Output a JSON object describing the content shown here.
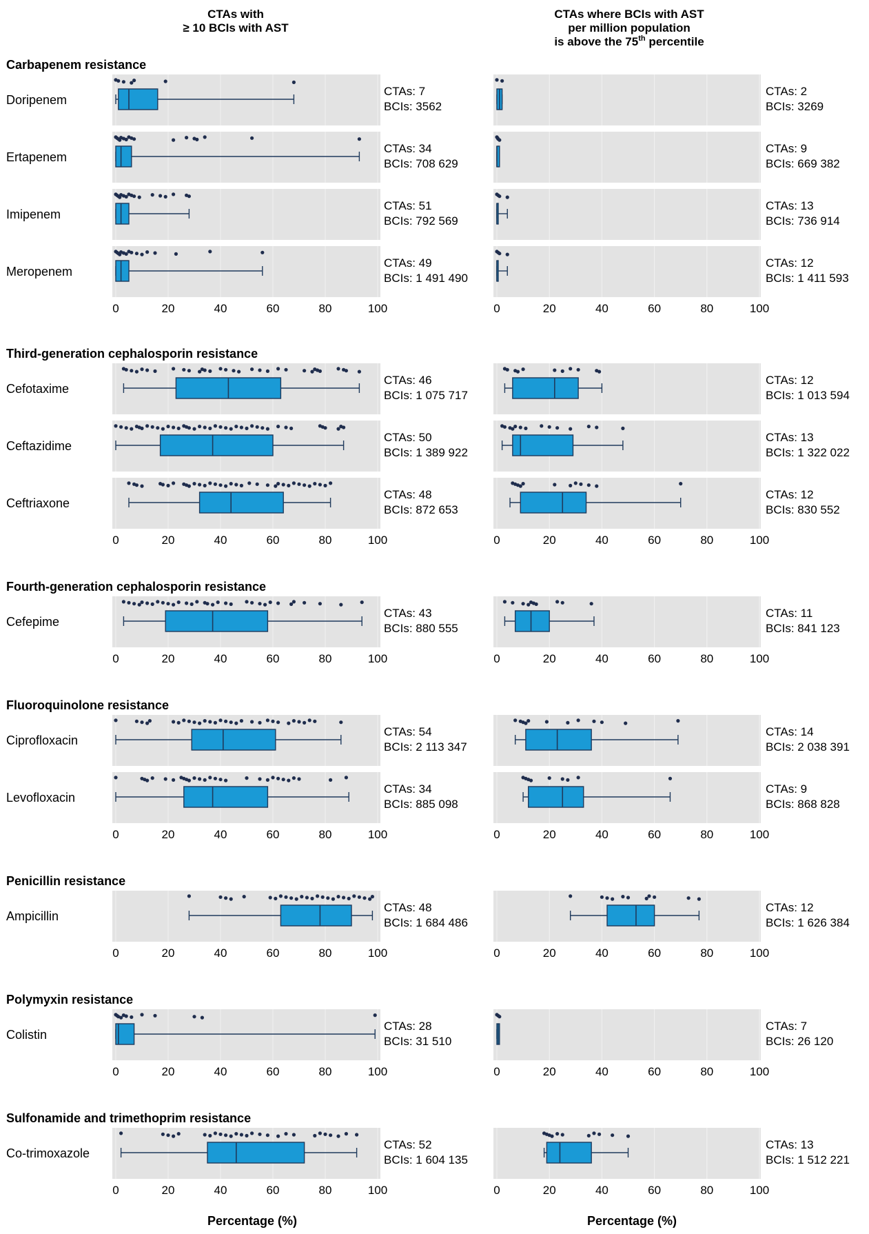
{
  "colors": {
    "panel_bg": "#e3e3e3",
    "grid": "#f2f2f2",
    "box_fill": "#1a9ad6",
    "box_stroke": "#1f3a5c",
    "point": "#1f2d4d"
  },
  "chart_data": {
    "type": "boxplot",
    "value_label": "Percentage (%)",
    "xlim": [
      0,
      100
    ],
    "x_ticks": [
      "0",
      "20",
      "40",
      "60",
      "80",
      "100"
    ],
    "grid": true,
    "columns": [
      {
        "lines": [
          "CTAs with",
          "≥ 10 BCIs with AST"
        ]
      },
      {
        "lines": [
          "CTAs where BCIs with AST",
          "per million population",
          "is above the 75",
          "percentile"
        ],
        "superscript": "th"
      }
    ],
    "x_labels": [
      "Percentage (%)",
      "Percentage (%)"
    ],
    "groups": [
      {
        "title": "Carbapenem resistance",
        "rows": [
          {
            "drug": "Doripenem",
            "left": {
              "min": 0,
              "q1": 1,
              "median": 5,
              "q3": 16,
              "max": 68,
              "points": [
                0,
                1,
                3,
                6,
                7,
                19,
                68
              ],
              "ctas": "CTAs: 7",
              "bcis": "BCIs: 3562"
            },
            "right": {
              "min": 0,
              "q1": 0,
              "median": 1,
              "q3": 2,
              "max": 2,
              "points": [
                0,
                2
              ],
              "ctas": "CTAs: 2",
              "bcis": "BCIs: 3269"
            }
          },
          {
            "drug": "Ertapenem",
            "left": {
              "min": 0,
              "q1": 0,
              "median": 2,
              "q3": 6,
              "max": 93,
              "points": [
                0,
                0.5,
                1,
                1.5,
                2,
                3,
                4,
                5,
                6,
                7,
                22,
                27,
                30,
                31,
                34,
                52,
                93
              ],
              "ctas": "CTAs: 34",
              "bcis": "BCIs: 708 629"
            },
            "right": {
              "min": 0,
              "q1": 0,
              "median": 0,
              "q3": 1,
              "max": 1,
              "points": [
                0,
                0.3,
                0.5,
                1
              ],
              "ctas": "CTAs: 9",
              "bcis": "BCIs: 669 382"
            }
          },
          {
            "drug": "Imipenem",
            "left": {
              "min": 0,
              "q1": 0,
              "median": 2,
              "q3": 5,
              "max": 28,
              "points": [
                0,
                0.5,
                1,
                1.5,
                2,
                3,
                4,
                5,
                6,
                7,
                9,
                14,
                17,
                19,
                22,
                27,
                28
              ],
              "ctas": "CTAs: 51",
              "bcis": "BCIs: 792 569"
            },
            "right": {
              "min": 0,
              "q1": 0,
              "median": 0,
              "q3": 0.5,
              "max": 4,
              "points": [
                0,
                0.5,
                1,
                4
              ],
              "ctas": "CTAs: 13",
              "bcis": "BCIs: 736 914"
            }
          },
          {
            "drug": "Meropenem",
            "left": {
              "min": 0,
              "q1": 0,
              "median": 2,
              "q3": 5,
              "max": 56,
              "points": [
                0,
                0.5,
                1,
                1.5,
                2,
                3,
                4,
                5,
                6,
                8,
                10,
                12,
                15,
                23,
                36,
                56
              ],
              "ctas": "CTAs: 49",
              "bcis": "BCIs: 1 491 490"
            },
            "right": {
              "min": 0,
              "q1": 0,
              "median": 0,
              "q3": 0.5,
              "max": 4,
              "points": [
                0,
                0.5,
                1,
                4
              ],
              "ctas": "CTAs: 12",
              "bcis": "BCIs: 1 411 593"
            }
          }
        ]
      },
      {
        "title": "Third-generation cephalosporin resistance",
        "rows": [
          {
            "drug": "Cefotaxime",
            "left": {
              "min": 3,
              "q1": 23,
              "median": 43,
              "q3": 63,
              "max": 93,
              "points": [
                3,
                4,
                6,
                8,
                10,
                12,
                15,
                22,
                26,
                28,
                32,
                33,
                34,
                36,
                40,
                42,
                45,
                47,
                52,
                55,
                58,
                62,
                65,
                72,
                75,
                76,
                77,
                78,
                85,
                87,
                88,
                93
              ],
              "ctas": "CTAs: 46",
              "bcis": "BCIs: 1 075 717"
            },
            "right": {
              "min": 3,
              "q1": 6,
              "median": 22,
              "q3": 31,
              "max": 40,
              "points": [
                3,
                4,
                7,
                8,
                10,
                22,
                25,
                28,
                31,
                38,
                39
              ],
              "ctas": "CTAs: 12",
              "bcis": "BCIs: 1 013 594"
            }
          },
          {
            "drug": "Ceftazidime",
            "left": {
              "min": 0,
              "q1": 17,
              "median": 37,
              "q3": 60,
              "max": 87,
              "points": [
                0,
                2,
                4,
                6,
                8,
                9,
                10,
                12,
                14,
                16,
                18,
                20,
                22,
                24,
                26,
                27,
                28,
                30,
                32,
                34,
                36,
                38,
                40,
                42,
                44,
                46,
                48,
                50,
                52,
                54,
                56,
                58,
                62,
                65,
                67,
                78,
                79,
                80,
                85,
                86,
                87
              ],
              "ctas": "CTAs: 50",
              "bcis": "BCIs: 1 389 922"
            },
            "right": {
              "min": 2,
              "q1": 6,
              "median": 9,
              "q3": 29,
              "max": 48,
              "points": [
                2,
                3,
                5,
                6,
                7,
                9,
                11,
                17,
                20,
                23,
                28,
                35,
                38,
                48
              ],
              "ctas": "CTAs: 13",
              "bcis": "BCIs: 1 322 022"
            }
          },
          {
            "drug": "Ceftriaxone",
            "left": {
              "min": 5,
              "q1": 32,
              "median": 44,
              "q3": 64,
              "max": 82,
              "points": [
                5,
                7,
                8,
                10,
                17,
                18,
                20,
                22,
                26,
                27,
                28,
                30,
                32,
                34,
                36,
                38,
                40,
                42,
                44,
                46,
                48,
                51,
                54,
                58,
                61,
                62,
                64,
                66,
                68,
                70,
                72,
                74,
                76,
                78,
                80,
                82
              ],
              "ctas": "CTAs: 48",
              "bcis": "BCIs: 872 653"
            },
            "right": {
              "min": 5,
              "q1": 9,
              "median": 25,
              "q3": 34,
              "max": 70,
              "points": [
                6,
                7,
                8,
                9,
                10,
                22,
                28,
                30,
                32,
                35,
                38,
                70
              ],
              "ctas": "CTAs: 12",
              "bcis": "BCIs: 830 552"
            }
          }
        ]
      },
      {
        "title": "Fourth-generation cephalosporin resistance",
        "rows": [
          {
            "drug": "Cefepime",
            "left": {
              "min": 3,
              "q1": 19,
              "median": 37,
              "q3": 58,
              "max": 94,
              "points": [
                3,
                5,
                7,
                9,
                10,
                12,
                14,
                16,
                18,
                20,
                22,
                24,
                27,
                29,
                31,
                34,
                35,
                37,
                39,
                42,
                44,
                50,
                52,
                55,
                57,
                59,
                62,
                67,
                68,
                72,
                78,
                86,
                94
              ],
              "ctas": "CTAs: 43",
              "bcis": "BCIs: 880 555"
            },
            "right": {
              "min": 3,
              "q1": 7,
              "median": 13,
              "q3": 20,
              "max": 37,
              "points": [
                3,
                6,
                10,
                12,
                13,
                14,
                15,
                23,
                25,
                36
              ],
              "ctas": "CTAs: 11",
              "bcis": "BCIs: 841 123"
            }
          }
        ]
      },
      {
        "title": "Fluoroquinolone resistance",
        "rows": [
          {
            "drug": "Ciprofloxacin",
            "left": {
              "min": 0,
              "q1": 29,
              "median": 41,
              "q3": 61,
              "max": 86,
              "points": [
                0,
                8,
                10,
                12,
                13,
                22,
                24,
                26,
                28,
                30,
                32,
                34,
                36,
                38,
                40,
                42,
                44,
                46,
                48,
                52,
                55,
                58,
                60,
                62,
                66,
                68,
                70,
                72,
                74,
                76,
                86
              ],
              "ctas": "CTAs: 54",
              "bcis": "BCIs: 2 113 347"
            },
            "right": {
              "min": 7,
              "q1": 11,
              "median": 23,
              "q3": 36,
              "max": 69,
              "points": [
                7,
                9,
                10,
                11,
                12,
                19,
                27,
                31,
                37,
                40,
                49,
                69
              ],
              "ctas": "CTAs: 14",
              "bcis": "BCIs: 2 038 391"
            }
          },
          {
            "drug": "Levofloxacin",
            "left": {
              "min": 0,
              "q1": 26,
              "median": 37,
              "q3": 58,
              "max": 89,
              "points": [
                0,
                10,
                11,
                12,
                14,
                19,
                22,
                25,
                26,
                27,
                28,
                30,
                32,
                34,
                36,
                38,
                40,
                42,
                50,
                55,
                58,
                60,
                62,
                64,
                66,
                68,
                70,
                82,
                88
              ],
              "ctas": "CTAs: 34",
              "bcis": "BCIs: 885 098"
            },
            "right": {
              "min": 10,
              "q1": 12,
              "median": 25,
              "q3": 33,
              "max": 66,
              "points": [
                10,
                11,
                12,
                13,
                20,
                25,
                27,
                31,
                66
              ],
              "ctas": "CTAs: 9",
              "bcis": "BCIs: 868 828"
            }
          }
        ]
      },
      {
        "title": "Penicillin resistance",
        "rows": [
          {
            "drug": "Ampicillin",
            "left": {
              "min": 28,
              "q1": 63,
              "median": 78,
              "q3": 90,
              "max": 98,
              "points": [
                28,
                40,
                42,
                44,
                49,
                59,
                61,
                63,
                65,
                67,
                69,
                71,
                73,
                75,
                77,
                79,
                81,
                83,
                85,
                87,
                89,
                91,
                93,
                95,
                97,
                98
              ],
              "ctas": "CTAs: 48",
              "bcis": "BCIs: 1 684 486"
            },
            "right": {
              "min": 28,
              "q1": 42,
              "median": 53,
              "q3": 60,
              "max": 77,
              "points": [
                28,
                40,
                42,
                44,
                48,
                50,
                57,
                58,
                60,
                73,
                77
              ],
              "ctas": "CTAs: 12",
              "bcis": "BCIs: 1 626 384"
            }
          }
        ]
      },
      {
        "title": "Polymyxin resistance",
        "rows": [
          {
            "drug": "Colistin",
            "left": {
              "min": 0,
              "q1": 0,
              "median": 1,
              "q3": 7,
              "max": 99,
              "points": [
                0,
                0.5,
                1,
                2,
                3,
                4,
                6,
                10,
                15,
                30,
                33,
                99
              ],
              "ctas": "CTAs: 28",
              "bcis": "BCIs: 31 510"
            },
            "right": {
              "min": 0,
              "q1": 0,
              "median": 0.5,
              "q3": 1,
              "max": 1,
              "points": [
                0,
                0.5,
                1
              ],
              "ctas": "CTAs: 7",
              "bcis": "BCIs: 26 120"
            }
          }
        ]
      },
      {
        "title": "Sulfonamide and trimethoprim resistance",
        "rows": [
          {
            "drug": "Co-trimoxazole",
            "left": {
              "min": 2,
              "q1": 35,
              "median": 46,
              "q3": 72,
              "max": 92,
              "points": [
                2,
                18,
                20,
                22,
                24,
                34,
                36,
                38,
                40,
                42,
                44,
                46,
                48,
                50,
                52,
                55,
                58,
                62,
                65,
                68,
                76,
                78,
                80,
                82,
                85,
                88,
                92
              ],
              "ctas": "CTAs: 52",
              "bcis": "BCIs: 1 604 135"
            },
            "right": {
              "min": 18,
              "q1": 19,
              "median": 24,
              "q3": 36,
              "max": 50,
              "points": [
                18,
                19,
                20,
                21,
                23,
                25,
                35,
                37,
                39,
                44,
                50
              ],
              "ctas": "CTAs: 13",
              "bcis": "BCIs: 1 512 221"
            }
          }
        ]
      }
    ]
  }
}
